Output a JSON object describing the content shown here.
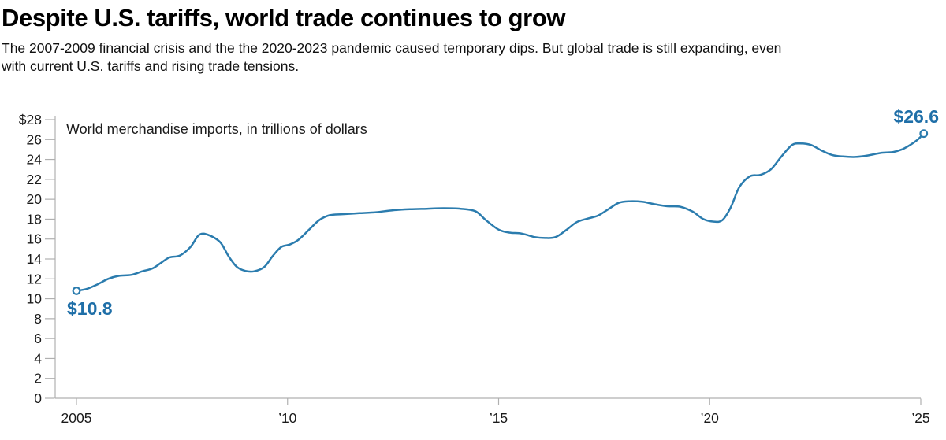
{
  "header": {
    "title": "Despite U.S. tariffs, world trade continues to grow",
    "subtitle_lines": [
      "The 2007-2009 financial crisis and the the 2020-2023 pandemic caused temporary dips. But global trade is still expanding, even",
      "with current U.S. tariffs and rising trade tensions."
    ]
  },
  "chart_data": {
    "type": "line",
    "title": "World merchandise imports, in trillions of dollars",
    "xlabel": "",
    "ylabel": "",
    "x_domain": [
      2005,
      2025.1
    ],
    "y_domain": [
      0,
      28
    ],
    "grid": false,
    "legend": "none",
    "yticks": [
      {
        "value": 28,
        "label": "$28"
      },
      {
        "value": 26,
        "label": "26"
      },
      {
        "value": 24,
        "label": "24"
      },
      {
        "value": 22,
        "label": "22"
      },
      {
        "value": 20,
        "label": "20"
      },
      {
        "value": 18,
        "label": "18"
      },
      {
        "value": 16,
        "label": "16"
      },
      {
        "value": 14,
        "label": "14"
      },
      {
        "value": 12,
        "label": "12"
      },
      {
        "value": 10,
        "label": "10"
      },
      {
        "value": 8,
        "label": "8"
      },
      {
        "value": 6,
        "label": "6"
      },
      {
        "value": 4,
        "label": "4"
      },
      {
        "value": 2,
        "label": "2"
      },
      {
        "value": 0,
        "label": "0"
      }
    ],
    "xticks": [
      {
        "year": 2005,
        "label": "2005"
      },
      {
        "year": 2010,
        "label": "’10"
      },
      {
        "year": 2015,
        "label": "’15"
      },
      {
        "year": 2020,
        "label": "’20"
      },
      {
        "year": 2025,
        "label": "’25"
      }
    ],
    "series": [
      {
        "name": "World merchandise imports (trillions of dollars)",
        "points": [
          [
            2005.0,
            10.8
          ],
          [
            2005.25,
            11.0
          ],
          [
            2005.5,
            11.45
          ],
          [
            2005.75,
            12.0
          ],
          [
            2006.0,
            12.3
          ],
          [
            2006.3,
            12.4
          ],
          [
            2006.55,
            12.75
          ],
          [
            2006.8,
            13.05
          ],
          [
            2007.0,
            13.6
          ],
          [
            2007.2,
            14.15
          ],
          [
            2007.45,
            14.35
          ],
          [
            2007.7,
            15.2
          ],
          [
            2007.9,
            16.4
          ],
          [
            2008.1,
            16.45
          ],
          [
            2008.4,
            15.7
          ],
          [
            2008.6,
            14.3
          ],
          [
            2008.8,
            13.2
          ],
          [
            2009.0,
            12.8
          ],
          [
            2009.2,
            12.75
          ],
          [
            2009.45,
            13.2
          ],
          [
            2009.65,
            14.3
          ],
          [
            2009.85,
            15.2
          ],
          [
            2010.05,
            15.45
          ],
          [
            2010.25,
            15.9
          ],
          [
            2010.5,
            16.9
          ],
          [
            2010.75,
            17.9
          ],
          [
            2011.0,
            18.4
          ],
          [
            2011.3,
            18.5
          ],
          [
            2011.7,
            18.6
          ],
          [
            2012.1,
            18.7
          ],
          [
            2012.5,
            18.9
          ],
          [
            2012.9,
            19.0
          ],
          [
            2013.3,
            19.05
          ],
          [
            2013.7,
            19.1
          ],
          [
            2014.1,
            19.05
          ],
          [
            2014.45,
            18.8
          ],
          [
            2014.7,
            17.9
          ],
          [
            2015.0,
            16.95
          ],
          [
            2015.25,
            16.65
          ],
          [
            2015.55,
            16.55
          ],
          [
            2015.85,
            16.2
          ],
          [
            2016.1,
            16.1
          ],
          [
            2016.35,
            16.2
          ],
          [
            2016.6,
            16.9
          ],
          [
            2016.85,
            17.7
          ],
          [
            2017.1,
            18.05
          ],
          [
            2017.35,
            18.35
          ],
          [
            2017.6,
            19.0
          ],
          [
            2017.85,
            19.65
          ],
          [
            2018.1,
            19.8
          ],
          [
            2018.4,
            19.75
          ],
          [
            2018.7,
            19.5
          ],
          [
            2019.0,
            19.3
          ],
          [
            2019.3,
            19.25
          ],
          [
            2019.6,
            18.75
          ],
          [
            2019.85,
            18.0
          ],
          [
            2020.1,
            17.75
          ],
          [
            2020.3,
            17.9
          ],
          [
            2020.5,
            19.2
          ],
          [
            2020.7,
            21.2
          ],
          [
            2020.95,
            22.3
          ],
          [
            2021.2,
            22.45
          ],
          [
            2021.45,
            23.0
          ],
          [
            2021.7,
            24.3
          ],
          [
            2021.95,
            25.45
          ],
          [
            2022.15,
            25.6
          ],
          [
            2022.4,
            25.45
          ],
          [
            2022.65,
            24.9
          ],
          [
            2022.9,
            24.45
          ],
          [
            2023.15,
            24.3
          ],
          [
            2023.45,
            24.25
          ],
          [
            2023.75,
            24.4
          ],
          [
            2024.05,
            24.65
          ],
          [
            2024.35,
            24.75
          ],
          [
            2024.6,
            25.1
          ],
          [
            2024.9,
            25.9
          ],
          [
            2025.07,
            26.6
          ]
        ]
      }
    ],
    "callouts": {
      "start": {
        "year": 2005.0,
        "value": 10.8,
        "label": "$10.8"
      },
      "end": {
        "year": 2025.07,
        "value": 26.6,
        "label": "$26.6"
      }
    },
    "colors": {
      "line": "#2b7cae",
      "callout_text": "#1f6fa8",
      "axis": "#b0b0b0",
      "tick_text": "#1a1a1a",
      "annotation_text": "#1d1d1d"
    }
  }
}
